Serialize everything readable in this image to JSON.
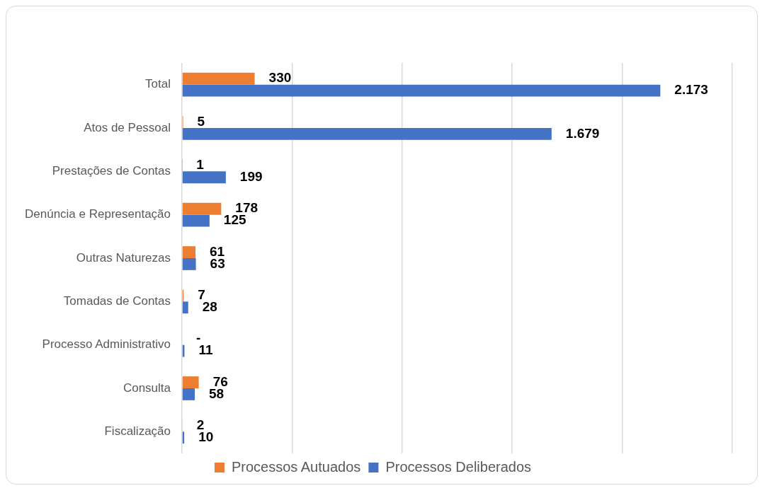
{
  "chart_data": {
    "type": "bar",
    "orientation": "horizontal",
    "categories": [
      "Total",
      "Atos de Pessoal",
      "Prestações de Contas",
      "Denúncia e Representação",
      "Outras Naturezas",
      "Tomadas de Contas",
      "Processo Administrativo",
      "Consulta",
      "Fiscalização"
    ],
    "series": [
      {
        "name": "Processos Autuados",
        "color": "#ed7d31",
        "values": [
          330,
          5,
          1,
          178,
          61,
          7,
          0,
          76,
          2
        ],
        "value_labels": [
          "330",
          "5",
          "1",
          "178",
          "61",
          "7",
          "-",
          "76",
          "2"
        ]
      },
      {
        "name": "Processos Deliberados",
        "color": "#4472c4",
        "values": [
          2173,
          1679,
          199,
          125,
          63,
          28,
          11,
          58,
          10
        ],
        "value_labels": [
          "2.173",
          "1.679",
          "199",
          "125",
          "63",
          "28",
          "11",
          "58",
          "10"
        ]
      }
    ],
    "xlim": [
      0,
      2500
    ],
    "xticks": [
      {
        "value": 0,
        "label": null
      },
      {
        "value": 500,
        "label": null
      },
      {
        "value": 1000,
        "label": null
      },
      {
        "value": 1500,
        "label": null
      },
      {
        "value": 2000,
        "label": null
      },
      {
        "value": 2500,
        "label": null
      }
    ],
    "tick_labels": "y",
    "grid": "x",
    "legend": "bottom"
  }
}
